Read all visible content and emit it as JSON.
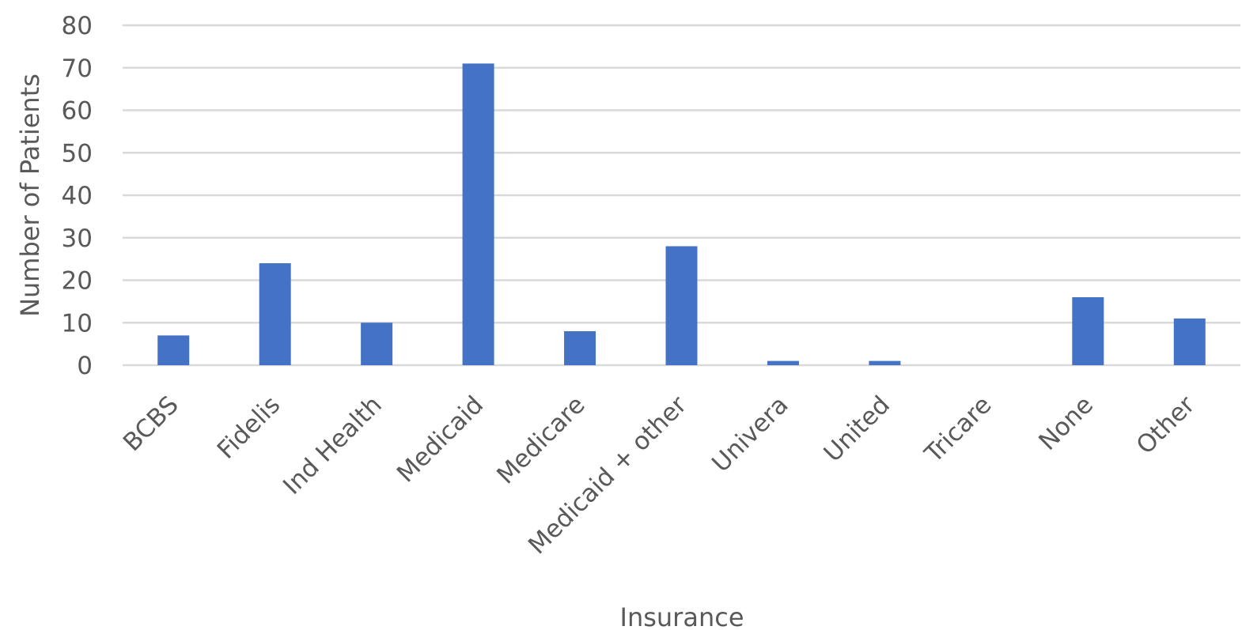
{
  "chart_data": {
    "type": "bar",
    "categories": [
      "BCBS",
      "Fidelis",
      "Ind Health",
      "Medicaid",
      "Medicare",
      "Medicaid + other",
      "Univera",
      "United",
      "Tricare",
      "None",
      "Other"
    ],
    "values": [
      7,
      24,
      10,
      71,
      8,
      28,
      1,
      1,
      0,
      16,
      11
    ],
    "xlabel": "Insurance",
    "ylabel": "Number of Patients",
    "ylim": [
      0,
      80
    ],
    "yticks": [
      0,
      10,
      20,
      30,
      40,
      50,
      60,
      70,
      80
    ],
    "grid": true,
    "legend": "none",
    "colors": {
      "bar": "#4472c4",
      "grid": "#d9d9d9",
      "text": "#595959"
    }
  }
}
